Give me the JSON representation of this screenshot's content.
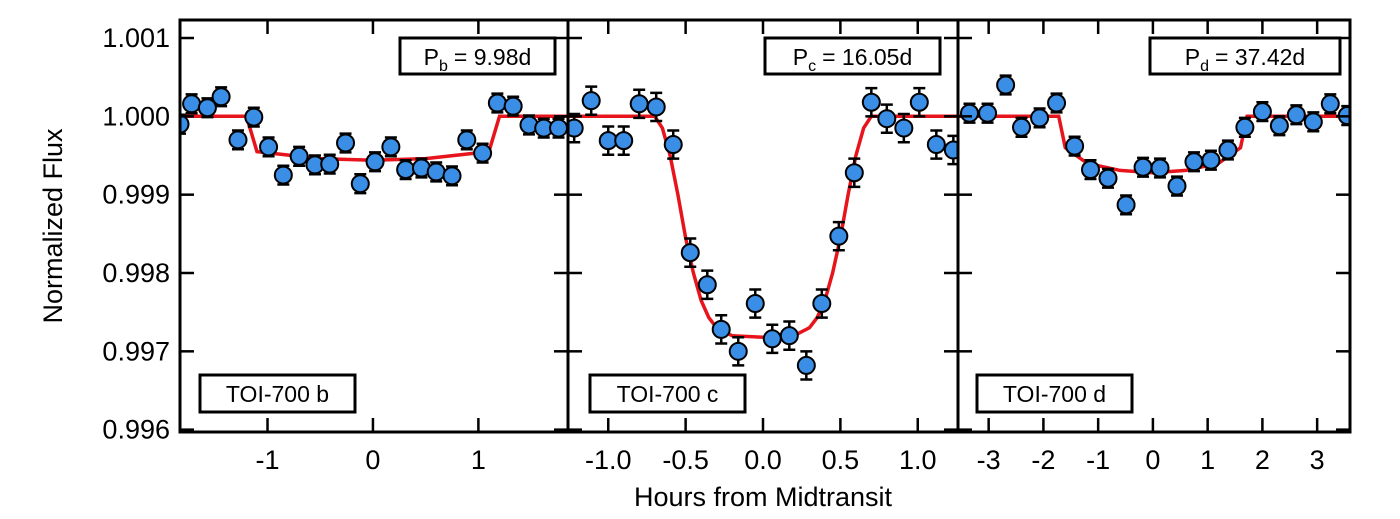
{
  "chart_data": [
    {
      "type": "scatter",
      "ylabel": "Normalized Flux",
      "period_label": {
        "symbol": "P",
        "subscript": "b",
        "text": "= 9.98d"
      },
      "planet_label": "TOI-700 b",
      "xlim": [
        -1.83,
        1.85
      ],
      "ylim": [
        0.99597,
        1.00123
      ],
      "xticks": [
        -1,
        0,
        1
      ],
      "yticks": [
        0.996,
        0.997,
        0.998,
        0.999,
        {
          "value": 1,
          "label": "1.000"
        },
        1.001
      ],
      "color": "#3a8ee6",
      "x": [
        -1.83,
        -1.72,
        -1.57,
        -1.44,
        -1.28,
        -1.13,
        -0.99,
        -0.85,
        -0.7,
        -0.55,
        -0.41,
        -0.26,
        -0.12,
        0.02,
        0.17,
        0.31,
        0.46,
        0.6,
        0.75,
        0.89,
        1.04,
        1.18,
        1.33,
        1.48,
        1.62,
        1.76
      ],
      "values": [
        0.9999,
        1.00016,
        1.00011,
        1.00025,
        0.9997,
        0.99999,
        0.99961,
        0.99925,
        0.99949,
        0.99938,
        0.99939,
        0.99966,
        0.99914,
        0.99942,
        0.99961,
        0.99932,
        0.99934,
        0.99929,
        0.99924,
        0.9997,
        0.99953,
        1.00017,
        1.00013,
        0.99989,
        0.99985,
        0.99985
      ],
      "errors": [
        0.00012,
        0.00012,
        0.00012,
        0.00012,
        0.00012,
        0.00012,
        0.00012,
        0.00012,
        0.00012,
        0.00012,
        0.00012,
        0.00012,
        0.00012,
        0.00012,
        0.00012,
        0.00012,
        0.00012,
        0.00012,
        0.00012,
        0.00012,
        0.00012,
        0.00012,
        0.00012,
        0.00012,
        0.00012,
        0.00012
      ],
      "model": {
        "color": "#e8141c",
        "x": [
          -1.83,
          -1.2,
          -1.1,
          -0.5,
          0,
          0.5,
          1.1,
          1.2,
          1.85
        ],
        "values": [
          1,
          1,
          0.99955,
          0.99946,
          0.99944,
          0.99946,
          0.99955,
          1,
          1
        ]
      }
    },
    {
      "type": "scatter",
      "xlabel": "Hours from Midtransit",
      "period_label": {
        "symbol": "P",
        "subscript": "c",
        "text": "= 16.05d"
      },
      "planet_label": "TOI-700 c",
      "xlim": [
        -1.26,
        1.26
      ],
      "ylim": [
        0.99597,
        1.00123
      ],
      "xticks": [
        {
          "value": -1,
          "label": "-1.0"
        },
        -0.5,
        {
          "value": 0,
          "label": "0.0"
        },
        0.5,
        {
          "value": 1,
          "label": "1.0"
        }
      ],
      "color": "#3a8ee6",
      "x": [
        -1.22,
        -1.11,
        -1.0,
        -0.9,
        -0.8,
        -0.69,
        -0.58,
        -0.47,
        -0.36,
        -0.27,
        -0.16,
        -0.05,
        0.06,
        0.17,
        0.28,
        0.38,
        0.49,
        0.59,
        0.7,
        0.8,
        0.91,
        1.01,
        1.12,
        1.23
      ],
      "values": [
        0.99985,
        1.0002,
        0.99969,
        0.99969,
        1.00016,
        1.00012,
        0.99964,
        0.99826,
        0.99785,
        0.99728,
        0.997,
        0.99761,
        0.99716,
        0.9972,
        0.99682,
        0.99761,
        0.99847,
        0.99928,
        1.00018,
        0.99997,
        0.99985,
        1.00018,
        0.99964,
        0.99957
      ],
      "errors": [
        0.00018,
        0.00018,
        0.00018,
        0.00018,
        0.00018,
        0.00018,
        0.00018,
        0.00018,
        0.00018,
        0.00018,
        0.00018,
        0.00018,
        0.00018,
        0.00018,
        0.00018,
        0.00018,
        0.00018,
        0.00018,
        0.00018,
        0.00018,
        0.00018,
        0.00018,
        0.00018,
        0.00018
      ],
      "model": {
        "color": "#e8141c",
        "x": [
          -1.26,
          -0.7,
          -0.65,
          -0.6,
          -0.55,
          -0.5,
          -0.45,
          -0.4,
          -0.35,
          -0.3,
          -0.2,
          0,
          0.2,
          0.3,
          0.35,
          0.4,
          0.45,
          0.5,
          0.55,
          0.6,
          0.65,
          0.7,
          1.26
        ],
        "values": [
          1,
          1,
          0.99985,
          0.9995,
          0.999,
          0.99845,
          0.998,
          0.99765,
          0.99743,
          0.9973,
          0.9972,
          0.99718,
          0.9972,
          0.9973,
          0.99743,
          0.99765,
          0.998,
          0.99845,
          0.999,
          0.9995,
          0.99985,
          1,
          1
        ]
      }
    },
    {
      "type": "scatter",
      "period_label": {
        "symbol": "P",
        "subscript": "d",
        "text": "= 37.42d"
      },
      "planet_label": "TOI-700 d",
      "xlim": [
        -3.56,
        3.6
      ],
      "ylim": [
        0.99597,
        1.00123
      ],
      "xticks": [
        -3,
        -2,
        -1,
        0,
        1,
        2,
        3
      ],
      "color": "#3a8ee6",
      "x": [
        -3.35,
        -3.02,
        -2.69,
        -2.4,
        -2.07,
        -1.76,
        -1.43,
        -1.14,
        -0.82,
        -0.49,
        -0.18,
        0.13,
        0.44,
        0.75,
        1.06,
        1.37,
        1.68,
        2.0,
        2.31,
        2.62,
        2.93,
        3.24,
        3.55
      ],
      "values": [
        1.00004,
        1.00004,
        1.0004,
        0.99986,
        0.99998,
        1.00017,
        0.99962,
        0.99932,
        0.99921,
        0.99887,
        0.99935,
        0.99934,
        0.99911,
        0.99942,
        0.99944,
        0.99957,
        0.99986,
        1.00006,
        0.99988,
        1.00002,
        0.99993,
        1.00016,
        1.00001
      ],
      "errors": [
        0.00012,
        0.00012,
        0.00012,
        0.00012,
        0.00012,
        0.00012,
        0.00012,
        0.00012,
        0.00012,
        0.00012,
        0.00012,
        0.00012,
        0.00012,
        0.00012,
        0.00012,
        0.00012,
        0.00012,
        0.00012,
        0.00012,
        0.00012,
        0.00012,
        0.00012,
        0.00012
      ],
      "model": {
        "color": "#e8141c",
        "x": [
          -3.56,
          -1.72,
          -1.6,
          -1.2,
          -0.6,
          0,
          0.6,
          1.2,
          1.6,
          1.72,
          3.6
        ],
        "values": [
          1,
          1,
          0.9996,
          0.9994,
          0.99931,
          0.99928,
          0.99931,
          0.9994,
          0.9996,
          1,
          1
        ]
      }
    }
  ]
}
